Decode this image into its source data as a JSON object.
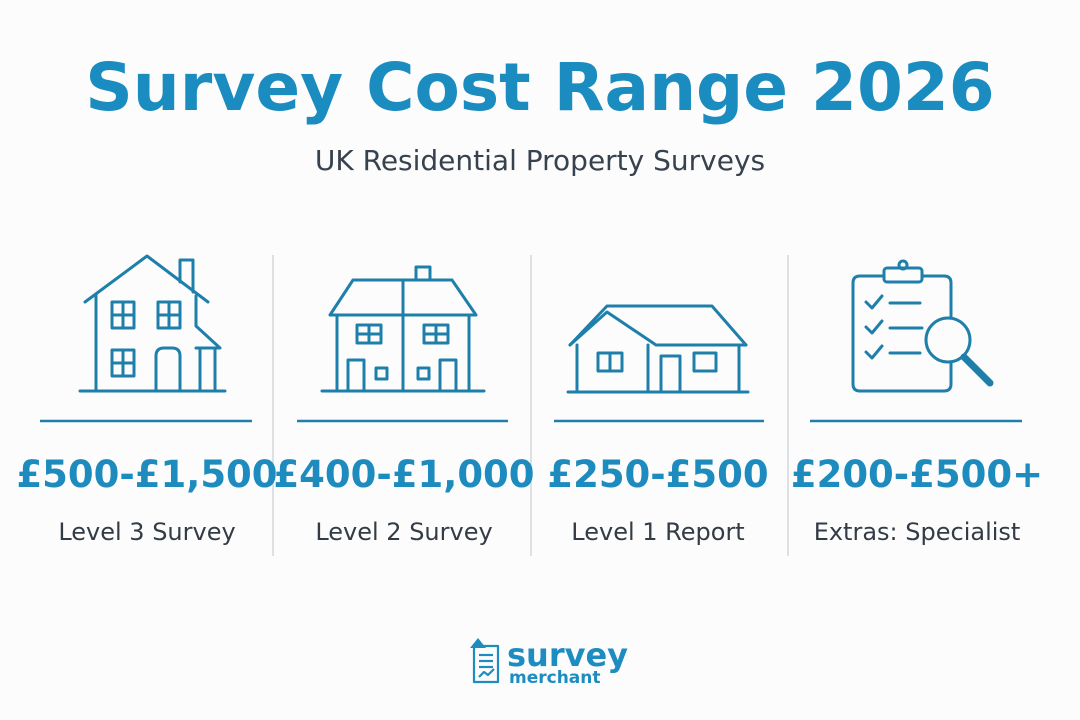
{
  "title": "Survey Cost Range 2026",
  "subtitle": "UK Residential Property Surveys",
  "cards": [
    {
      "price": "£500-£1,500",
      "label": "Level 3 Survey"
    },
    {
      "price": "£400-£1,000",
      "label": "Level 2 Survey"
    },
    {
      "price": "£250-£500",
      "label": "Level 1 Report"
    },
    {
      "price": "£200-£500+",
      "label": "Extras: Specialist"
    }
  ],
  "logo": {
    "line1": "survey",
    "line2": "merchant"
  }
}
